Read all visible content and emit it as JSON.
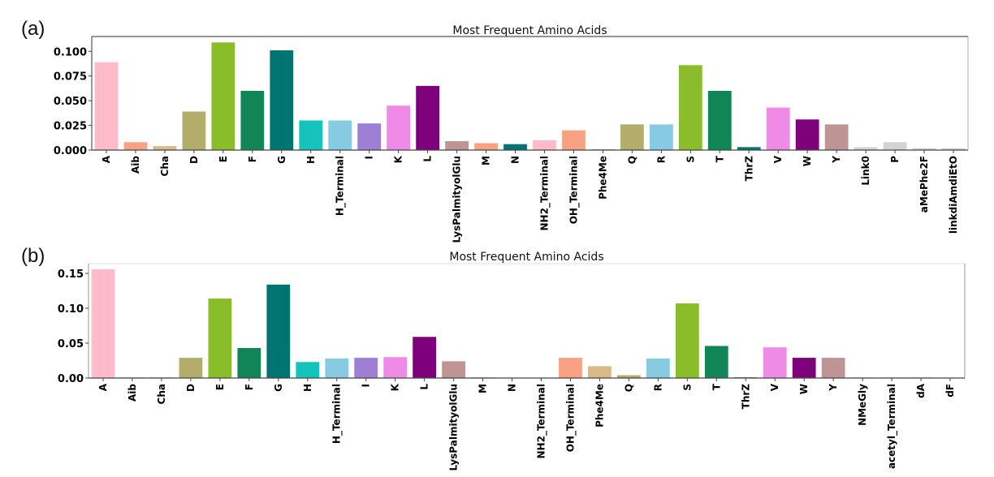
{
  "figure": {
    "panels": [
      "(a)",
      "(b)"
    ]
  },
  "chart_data": [
    {
      "type": "bar",
      "panel_label": "(a)",
      "title": "Most Frequent Amino Acids",
      "xlabel": "",
      "ylabel": "",
      "ylim": [
        0,
        0.115
      ],
      "yticks": [
        0.0,
        0.025,
        0.05,
        0.075,
        0.1
      ],
      "ytick_labels": [
        "0.000",
        "0.025",
        "0.050",
        "0.075",
        "0.100"
      ],
      "grid": false,
      "categories": [
        "A",
        "Aib",
        "Cha",
        "D",
        "E",
        "F",
        "G",
        "H",
        "H_Terminal",
        "I",
        "K",
        "L",
        "LysPalmityolGlu",
        "M",
        "N",
        "NH2_Terminal",
        "OH_Terminal",
        "Phe4Me",
        "Q",
        "R",
        "S",
        "T",
        "ThrZ",
        "V",
        "W",
        "Y",
        "Link0",
        "P",
        "aMePhe2F",
        "linkdiAmdiEtO"
      ],
      "values": [
        0.089,
        0.008,
        0.004,
        0.039,
        0.109,
        0.06,
        0.101,
        0.03,
        0.03,
        0.027,
        0.045,
        0.065,
        0.009,
        0.007,
        0.006,
        0.01,
        0.02,
        0.001,
        0.026,
        0.026,
        0.086,
        0.06,
        0.003,
        0.043,
        0.031,
        0.026,
        0.003,
        0.008,
        0.002,
        0.002
      ],
      "colors": [
        "#ffbcc8",
        "#f9a283",
        "#d8b98a",
        "#b3ad6c",
        "#8abd2a",
        "#118556",
        "#007470",
        "#14c4bc",
        "#86cbe2",
        "#9e7fd6",
        "#ef8be6",
        "#7e007a",
        "#bf9494",
        "#f9a283",
        "#007470",
        "#ffbcc8",
        "#f9a283",
        "#d8b98a",
        "#b3ad6c",
        "#86cbe2",
        "#8abd2a",
        "#118556",
        "#007470",
        "#ef8be6",
        "#7e007a",
        "#bf9494",
        "#d3d3d3",
        "#d3d3d3",
        "#d3d3d3",
        "#d3d3d3"
      ]
    },
    {
      "type": "bar",
      "panel_label": "(b)",
      "title": "Most Frequent Amino Acids",
      "xlabel": "",
      "ylabel": "",
      "ylim": [
        0,
        0.164
      ],
      "yticks": [
        0.0,
        0.05,
        0.1,
        0.15
      ],
      "ytick_labels": [
        "0.00",
        "0.05",
        "0.10",
        "0.15"
      ],
      "grid": false,
      "categories": [
        "A",
        "Aib",
        "Cha",
        "D",
        "E",
        "F",
        "G",
        "H",
        "H_Terminal",
        "I",
        "K",
        "L",
        "LysPalmityolGlu",
        "M",
        "N",
        "NH2_Terminal",
        "OH_Terminal",
        "Phe4Me",
        "Q",
        "R",
        "S",
        "T",
        "ThrZ",
        "V",
        "W",
        "Y",
        "NMeGly",
        "acetyl_Terminal",
        "dA",
        "dF"
      ],
      "values": [
        0.156,
        0.001,
        0.001,
        0.029,
        0.114,
        0.043,
        0.134,
        0.023,
        0.028,
        0.029,
        0.03,
        0.059,
        0.024,
        0.001,
        0.0,
        0.0,
        0.029,
        0.017,
        0.004,
        0.028,
        0.107,
        0.046,
        0.001,
        0.044,
        0.029,
        0.029,
        0.0003,
        0.0005,
        0.0005,
        0.0
      ],
      "colors": [
        "#ffbcc8",
        "#f9a283",
        "#d8b98a",
        "#b3ad6c",
        "#8abd2a",
        "#118556",
        "#007470",
        "#14c4bc",
        "#86cbe2",
        "#9e7fd6",
        "#ef8be6",
        "#7e007a",
        "#bf9494",
        "#f9a283",
        "#007470",
        "#ffbcc8",
        "#f9a283",
        "#d8b98a",
        "#b3ad6c",
        "#86cbe2",
        "#8abd2a",
        "#118556",
        "#007470",
        "#ef8be6",
        "#7e007a",
        "#bf9494",
        "#d3d3d3",
        "#d3d3d3",
        "#d3d3d3",
        "#d3d3d3"
      ]
    }
  ]
}
